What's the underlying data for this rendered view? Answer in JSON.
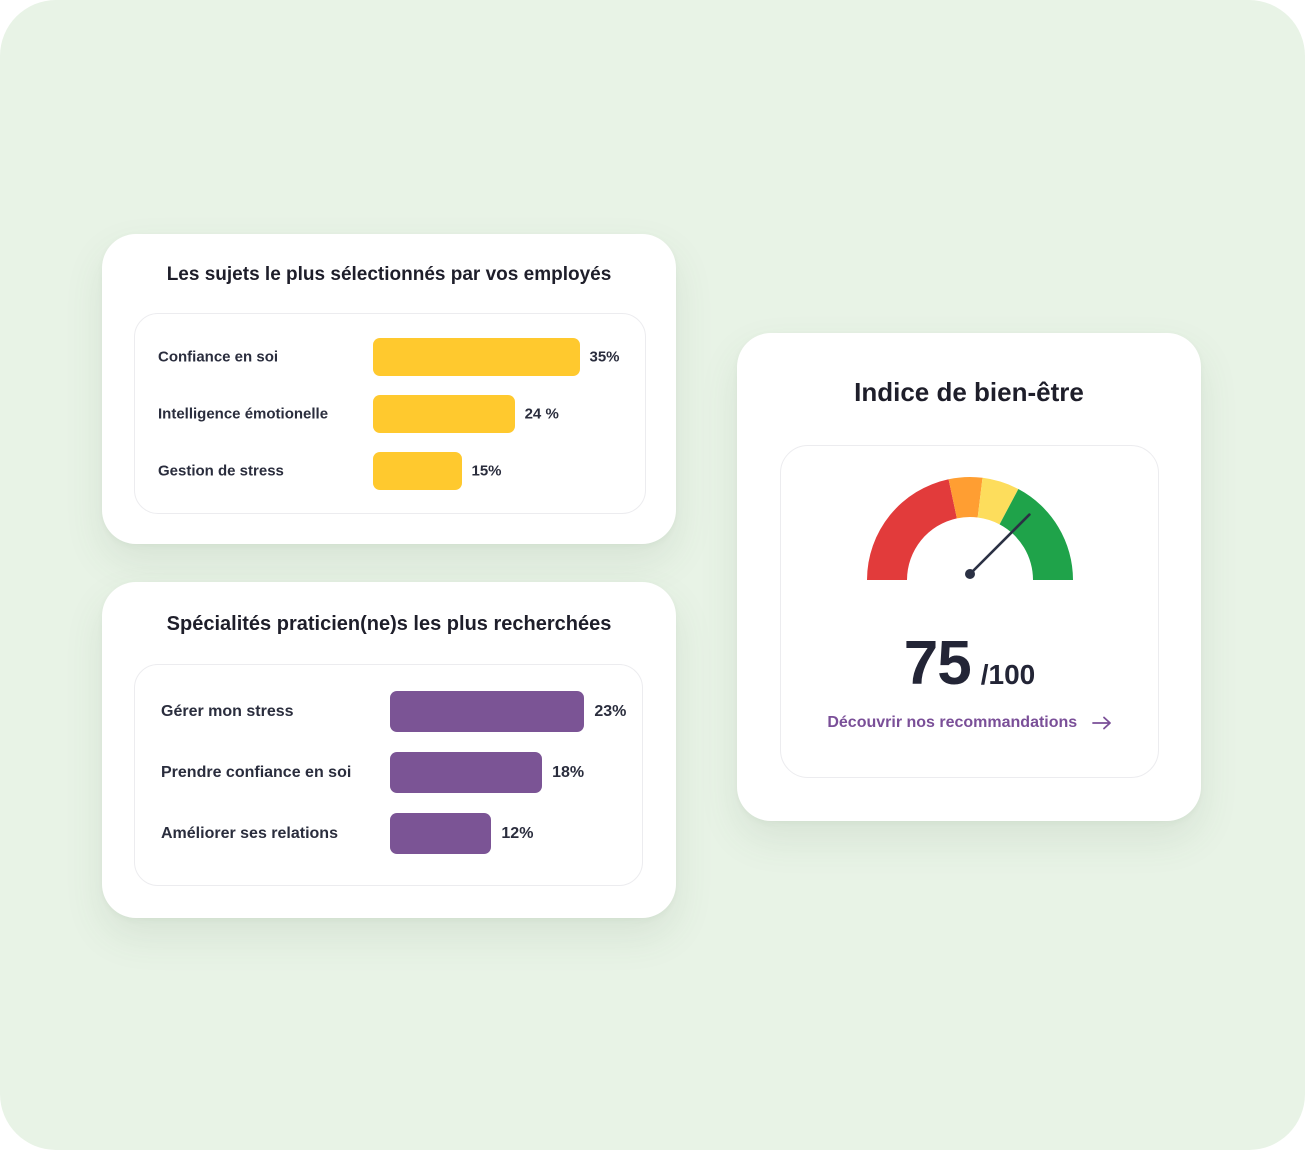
{
  "topics_card": {
    "title": "Les sujets le plus sélectionnés par vos employés",
    "items": [
      {
        "label": "Confiance en soi",
        "value": 35,
        "value_text": "35%"
      },
      {
        "label": "Intelligence émotionelle",
        "value": 24,
        "value_text": "24 %"
      },
      {
        "label": "Gestion de stress",
        "value": 15,
        "value_text": "15%"
      }
    ]
  },
  "specialties_card": {
    "title": "Spécialités praticien(ne)s les plus recherchées",
    "items": [
      {
        "label": "Gérer mon stress",
        "value": 23,
        "value_text": "23%"
      },
      {
        "label": "Prendre confiance en soi",
        "value": 18,
        "value_text": "18%"
      },
      {
        "label": "Améliorer ses relations",
        "value": 12,
        "value_text": "12%"
      }
    ]
  },
  "wellbeing_card": {
    "title": "Indice de bien-être",
    "score": "75",
    "max_text": "/100",
    "score_value": 75,
    "score_max": 100,
    "link_text": "Découvrir nos recommandations",
    "link_icon": "arrow-right-icon",
    "gauge_colors": [
      "#e23b3b",
      "#ff9e32",
      "#fddd5c",
      "#1fa34a"
    ],
    "needle_color": "#2b3144"
  },
  "colors": {
    "background": "#e8f3e6",
    "topics_bar": "#ffc92e",
    "specialties_bar": "#7b5495",
    "accent_link": "#7a4f98"
  }
}
